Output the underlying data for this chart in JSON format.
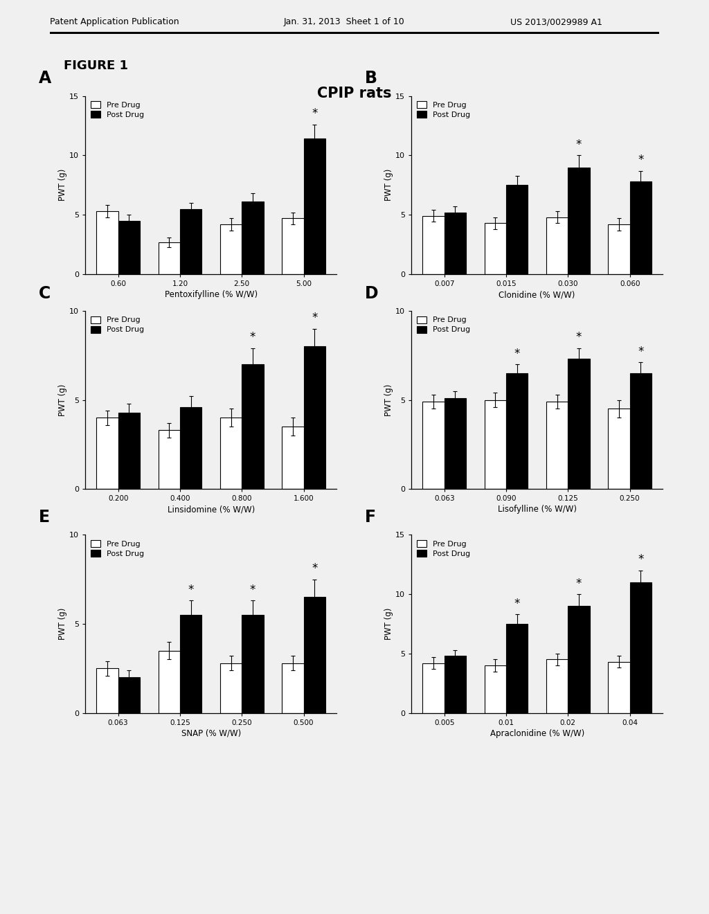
{
  "title": "CPIP rats",
  "figure_label": "FIGURE 1",
  "header_left": "Patent Application Publication",
  "header_date": "Jan. 31, 2013  Sheet 1 of 10",
  "header_right": "US 2013/0029989 A1",
  "panels": [
    {
      "label": "A",
      "xlabel": "Pentoxifylline (% W/W)",
      "ylabel": "PWT (g)",
      "ylim": [
        0,
        15
      ],
      "yticks": [
        0,
        5,
        10,
        15
      ],
      "categories": [
        "0.60",
        "1.20",
        "2.50",
        "5.00"
      ],
      "pre_values": [
        5.3,
        2.7,
        4.2,
        4.7
      ],
      "post_values": [
        4.5,
        5.5,
        6.1,
        11.4
      ],
      "pre_errors": [
        0.5,
        0.4,
        0.5,
        0.5
      ],
      "post_errors": [
        0.5,
        0.5,
        0.7,
        1.2
      ],
      "sig_post": [
        false,
        false,
        false,
        true
      ]
    },
    {
      "label": "B",
      "xlabel": "Clonidine (% W/W)",
      "ylabel": "PWT (g)",
      "ylim": [
        0,
        15
      ],
      "yticks": [
        0,
        5,
        10,
        15
      ],
      "categories": [
        "0.007",
        "0.015",
        "0.030",
        "0.060"
      ],
      "pre_values": [
        4.9,
        4.3,
        4.8,
        4.2
      ],
      "post_values": [
        5.2,
        7.5,
        9.0,
        7.8
      ],
      "pre_errors": [
        0.5,
        0.5,
        0.5,
        0.5
      ],
      "post_errors": [
        0.5,
        0.8,
        1.0,
        0.9
      ],
      "sig_post": [
        false,
        false,
        true,
        true
      ]
    },
    {
      "label": "C",
      "xlabel": "Linsidomine (% W/W)",
      "ylabel": "PWT (g)",
      "ylim": [
        0,
        10
      ],
      "yticks": [
        0,
        5,
        10
      ],
      "categories": [
        "0.200",
        "0.400",
        "0.800",
        "1.600"
      ],
      "pre_values": [
        4.0,
        3.3,
        4.0,
        3.5
      ],
      "post_values": [
        4.3,
        4.6,
        7.0,
        8.0
      ],
      "pre_errors": [
        0.4,
        0.4,
        0.5,
        0.5
      ],
      "post_errors": [
        0.5,
        0.6,
        0.9,
        1.0
      ],
      "sig_post": [
        false,
        false,
        true,
        true
      ]
    },
    {
      "label": "D",
      "xlabel": "Lisofylline (% W/W)",
      "ylabel": "PWT (g)",
      "ylim": [
        0,
        10
      ],
      "yticks": [
        0,
        5,
        10
      ],
      "categories": [
        "0.063",
        "0.090",
        "0.125",
        "0.250"
      ],
      "pre_values": [
        4.9,
        5.0,
        4.9,
        4.5
      ],
      "post_values": [
        5.1,
        6.5,
        7.3,
        6.5
      ],
      "pre_errors": [
        0.4,
        0.4,
        0.4,
        0.5
      ],
      "post_errors": [
        0.4,
        0.5,
        0.6,
        0.6
      ],
      "sig_post": [
        false,
        true,
        true,
        true
      ]
    },
    {
      "label": "E",
      "xlabel": "SNAP (% W/W)",
      "ylabel": "PWT (g)",
      "ylim": [
        0,
        10
      ],
      "yticks": [
        0,
        5,
        10
      ],
      "categories": [
        "0.063",
        "0.125",
        "0.250",
        "0.500"
      ],
      "pre_values": [
        2.5,
        3.5,
        2.8,
        2.8
      ],
      "post_values": [
        2.0,
        5.5,
        5.5,
        6.5
      ],
      "pre_errors": [
        0.4,
        0.5,
        0.4,
        0.4
      ],
      "post_errors": [
        0.4,
        0.8,
        0.8,
        1.0
      ],
      "sig_post": [
        false,
        true,
        true,
        true
      ]
    },
    {
      "label": "F",
      "xlabel": "Apraclonidine (% W/W)",
      "ylabel": "PWT (g)",
      "ylim": [
        0,
        15
      ],
      "yticks": [
        0,
        5,
        10,
        15
      ],
      "categories": [
        "0.005",
        "0.01",
        "0.02",
        "0.04"
      ],
      "pre_values": [
        4.2,
        4.0,
        4.5,
        4.3
      ],
      "post_values": [
        4.8,
        7.5,
        9.0,
        11.0
      ],
      "pre_errors": [
        0.5,
        0.5,
        0.5,
        0.5
      ],
      "post_errors": [
        0.5,
        0.8,
        1.0,
        1.0
      ],
      "sig_post": [
        false,
        true,
        true,
        true
      ]
    }
  ],
  "pre_color": "white",
  "post_color": "black",
  "bar_edge_color": "black",
  "bar_width": 0.35,
  "background_color": "#f0f0f0",
  "text_color": "black"
}
